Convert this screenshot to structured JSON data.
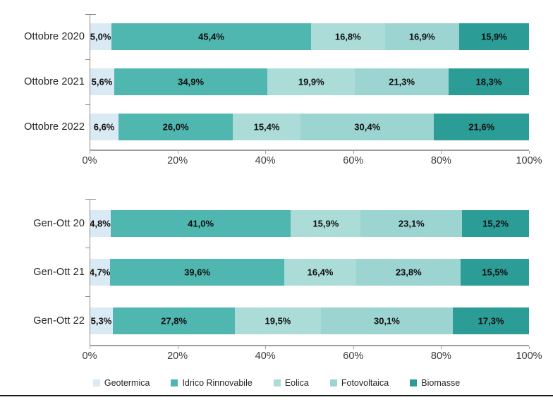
{
  "page": {
    "background": "#ffffff"
  },
  "colors": {
    "axis_line": "#a0a0a0",
    "vertical_axis_line": "#8a8a8a",
    "tick_label": "#3a3a3a",
    "category_label": "#262626",
    "value_label": "#0f0f0f",
    "legend_label": "#262626",
    "bottom_divider": "#1a1a1a"
  },
  "legend": {
    "items": [
      {
        "label": "Geotermica",
        "color": "#d9eaf4"
      },
      {
        "label": "Idrico Rinnovabile",
        "color": "#4fb6b0"
      },
      {
        "label": "Eolica",
        "color": "#abdcd8"
      },
      {
        "label": "Fotovoltaica",
        "color": "#9bd4d1"
      },
      {
        "label": "Biomasse",
        "color": "#2b9c96"
      }
    ],
    "position": "bottom-center"
  },
  "chart_data": [
    {
      "type": "bar",
      "stacked": true,
      "orientation": "horizontal",
      "title": "",
      "categories": [
        "Ottobre 2020",
        "Ottobre 2021",
        "Ottobre 2022"
      ],
      "series": [
        {
          "name": "Geotermica",
          "color": "#d9eaf4",
          "values": [
            5.0,
            5.6,
            6.6
          ]
        },
        {
          "name": "Idrico Rinnovabile",
          "color": "#4fb6b0",
          "values": [
            45.4,
            34.9,
            26.0
          ]
        },
        {
          "name": "Eolica",
          "color": "#abdcd8",
          "values": [
            16.8,
            19.9,
            15.4
          ]
        },
        {
          "name": "Fotovoltaica",
          "color": "#9bd4d1",
          "values": [
            16.9,
            21.3,
            30.4
          ]
        },
        {
          "name": "Biomasse",
          "color": "#2b9c96",
          "values": [
            15.9,
            18.3,
            21.6
          ]
        }
      ],
      "value_labels": [
        [
          "5,0%",
          "45,4%",
          "16,8%",
          "16,9%",
          "15,9%"
        ],
        [
          "5,6%",
          "34,9%",
          "19,9%",
          "21,3%",
          "18,3%"
        ],
        [
          "6,6%",
          "26,0%",
          "15,4%",
          "30,4%",
          "21,6%"
        ]
      ],
      "x_ticks": [
        "0%",
        "20%",
        "40%",
        "60%",
        "80%",
        "100%"
      ],
      "xlim": [
        0,
        100
      ],
      "grid": false
    },
    {
      "type": "bar",
      "stacked": true,
      "orientation": "horizontal",
      "title": "",
      "categories": [
        "Gen-Ott 20",
        "Gen-Ott 21",
        "Gen-Ott 22"
      ],
      "series": [
        {
          "name": "Geotermica",
          "color": "#d9eaf4",
          "values": [
            4.8,
            4.7,
            5.3
          ]
        },
        {
          "name": "Idrico Rinnovabile",
          "color": "#4fb6b0",
          "values": [
            41.0,
            39.6,
            27.8
          ]
        },
        {
          "name": "Eolica",
          "color": "#abdcd8",
          "values": [
            15.9,
            16.4,
            19.5
          ]
        },
        {
          "name": "Fotovoltaica",
          "color": "#9bd4d1",
          "values": [
            23.1,
            23.8,
            30.1
          ]
        },
        {
          "name": "Biomasse",
          "color": "#2b9c96",
          "values": [
            15.2,
            15.5,
            17.3
          ]
        }
      ],
      "value_labels": [
        [
          "4,8%",
          "41,0%",
          "15,9%",
          "23,1%",
          "15,2%"
        ],
        [
          "4,7%",
          "39,6%",
          "16,4%",
          "23,8%",
          "15,5%"
        ],
        [
          "5,3%",
          "27,8%",
          "19,5%",
          "30,1%",
          "17,3%"
        ]
      ],
      "x_ticks": [
        "0%",
        "20%",
        "40%",
        "60%",
        "80%",
        "100%"
      ],
      "xlim": [
        0,
        100
      ],
      "grid": false
    }
  ]
}
